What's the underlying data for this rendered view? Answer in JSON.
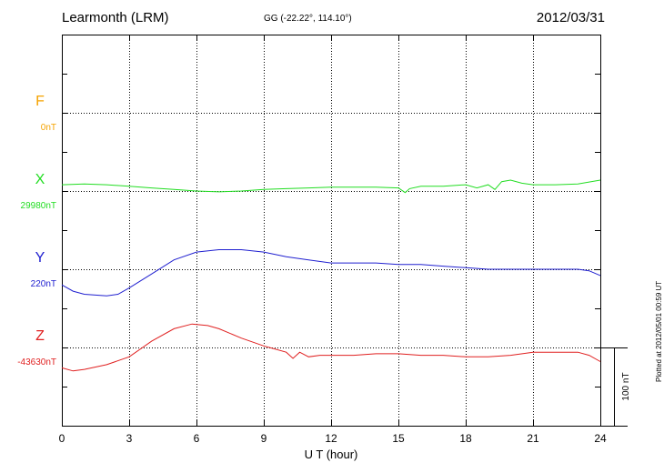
{
  "header": {
    "station": "Learmonth (LRM)",
    "coords": "GG (-22.22°, 114.10°)",
    "date": "2012/03/31"
  },
  "footer": {
    "plotted": "Plotted at 2012/05/01 00:59 UT"
  },
  "chart_data": {
    "type": "line",
    "xlabel": "U T (hour)",
    "xlim": [
      0,
      24
    ],
    "xticks": [
      "0",
      "3",
      "6",
      "9",
      "12",
      "15",
      "18",
      "21",
      "24"
    ],
    "scale_bar": "100 nT",
    "series": [
      {
        "name": "F",
        "baseline_label": "0nT",
        "color": "#f5a300",
        "offset_nT": [
          0,
          0
        ],
        "x": [],
        "y": []
      },
      {
        "name": "X",
        "baseline_label": "29980nT",
        "color": "#22dd22",
        "x": [
          0,
          1,
          2,
          3,
          4,
          5,
          6,
          7,
          8,
          9,
          10,
          11,
          12,
          13,
          14,
          15,
          15.3,
          15.5,
          16,
          17,
          18,
          18.5,
          19,
          19.3,
          19.6,
          20,
          20.5,
          21,
          22,
          23,
          24
        ],
        "y": [
          8,
          9,
          8,
          6,
          4,
          2,
          0,
          -1,
          0,
          2,
          3,
          4,
          5,
          5,
          5,
          4,
          -2,
          3,
          6,
          6,
          8,
          4,
          8,
          2,
          12,
          14,
          10,
          8,
          8,
          9,
          14
        ]
      },
      {
        "name": "Y",
        "baseline_label": "220nT",
        "color": "#2020d0",
        "x": [
          0,
          0.5,
          1,
          2,
          2.5,
          3,
          4,
          5,
          6,
          7,
          8,
          9,
          10,
          11,
          12,
          13,
          14,
          15,
          16,
          17,
          18,
          19,
          20,
          21,
          22,
          23,
          23.5,
          24
        ],
        "y": [
          -20,
          -28,
          -32,
          -34,
          -32,
          -24,
          -6,
          12,
          22,
          25,
          25,
          22,
          16,
          12,
          8,
          8,
          8,
          6,
          6,
          4,
          2,
          0,
          0,
          0,
          0,
          0,
          -2,
          -8
        ]
      },
      {
        "name": "Z",
        "baseline_label": "-43630nT",
        "color": "#e02020",
        "x": [
          0,
          0.5,
          1,
          2,
          3,
          4,
          5,
          5.8,
          6.5,
          7,
          8,
          9,
          10,
          10.3,
          10.6,
          11,
          11.5,
          12,
          13,
          14,
          15,
          16,
          17,
          18,
          19,
          20,
          21,
          22,
          23,
          23.5,
          24
        ],
        "y": [
          -26,
          -30,
          -28,
          -22,
          -12,
          8,
          24,
          30,
          28,
          24,
          12,
          2,
          -6,
          -14,
          -6,
          -12,
          -10,
          -10,
          -10,
          -8,
          -8,
          -10,
          -10,
          -12,
          -12,
          -10,
          -6,
          -6,
          -6,
          -10,
          -18
        ]
      }
    ]
  }
}
